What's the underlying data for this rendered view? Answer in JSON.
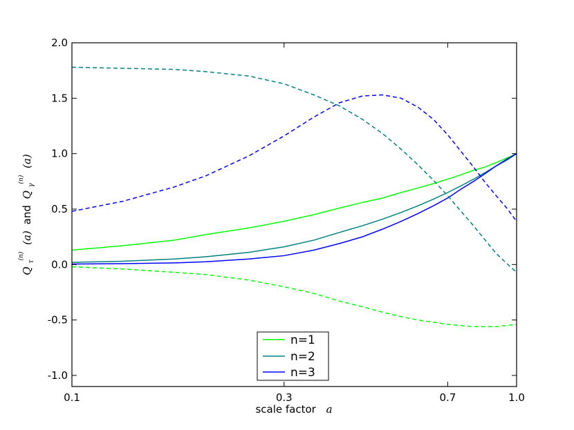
{
  "chart_data": {
    "type": "line",
    "xscale": "log",
    "xlim": [
      0.1,
      1.0
    ],
    "ylim": [
      -1.1,
      2.0
    ],
    "xticks": [
      "0.1",
      "0.3",
      "0.7",
      "1.0"
    ],
    "xtick_values": [
      0.1,
      0.3,
      0.7,
      1.0
    ],
    "yticks": [
      "2.0",
      "1.5",
      "1.0",
      "0.5",
      "0.0",
      "-0.5",
      "-1.0"
    ],
    "ytick_values": [
      2.0,
      1.5,
      1.0,
      0.5,
      0.0,
      -0.5,
      -1.0
    ],
    "xlabel": {
      "prefix": "scale factor",
      "var": "a"
    },
    "ylabel": {
      "Q1": "Q",
      "sub1": "τ",
      "sup1": "(n)",
      "arg1": "(a)",
      "joiner": "and",
      "Q2": "Q",
      "sub2": "γ",
      "sup2": "(n)",
      "arg2": "(a)"
    },
    "grid": false,
    "legend_position": "lower center",
    "legend": [
      {
        "label": "n=1",
        "color": "#00ff00"
      },
      {
        "label": "n=2",
        "color": "#008080"
      },
      {
        "label": "n=3",
        "color": "#0000ff"
      }
    ],
    "x": [
      0.1,
      0.13,
      0.17,
      0.2,
      0.25,
      0.3,
      0.35,
      0.4,
      0.45,
      0.5,
      0.55,
      0.6,
      0.65,
      0.7,
      0.75,
      0.8,
      0.85,
      0.9,
      0.95,
      1.0
    ],
    "series": [
      {
        "name": "n=1",
        "style": "solid",
        "color": "#00ff00",
        "values": [
          0.13,
          0.17,
          0.22,
          0.27,
          0.33,
          0.39,
          0.45,
          0.51,
          0.56,
          0.6,
          0.65,
          0.69,
          0.73,
          0.77,
          0.81,
          0.85,
          0.88,
          0.92,
          0.96,
          1.0
        ]
      },
      {
        "name": "n=2",
        "style": "solid",
        "color": "#008080",
        "values": [
          0.02,
          0.03,
          0.05,
          0.07,
          0.11,
          0.16,
          0.22,
          0.29,
          0.35,
          0.41,
          0.47,
          0.53,
          0.59,
          0.65,
          0.71,
          0.77,
          0.83,
          0.89,
          0.94,
          1.0
        ]
      },
      {
        "name": "",
        "style": "solid",
        "color": "#0000ff",
        "values": [
          0.005,
          0.008,
          0.015,
          0.025,
          0.05,
          0.08,
          0.13,
          0.19,
          0.25,
          0.32,
          0.39,
          0.46,
          0.53,
          0.6,
          0.68,
          0.75,
          0.82,
          0.89,
          0.95,
          1.0
        ]
      },
      {
        "name": "",
        "style": "dashed",
        "color": "#00ff00",
        "values": [
          -0.02,
          -0.04,
          -0.07,
          -0.09,
          -0.14,
          -0.2,
          -0.26,
          -0.33,
          -0.38,
          -0.43,
          -0.47,
          -0.5,
          -0.52,
          -0.54,
          -0.55,
          -0.56,
          -0.56,
          -0.56,
          -0.55,
          -0.54
        ]
      },
      {
        "name": "",
        "style": "dashed",
        "color": "#008080",
        "values": [
          1.78,
          1.77,
          1.76,
          1.74,
          1.7,
          1.63,
          1.53,
          1.43,
          1.31,
          1.18,
          1.04,
          0.9,
          0.76,
          0.62,
          0.48,
          0.35,
          0.22,
          0.1,
          0.01,
          -0.07
        ]
      },
      {
        "name": "",
        "style": "dashed",
        "color": "#0000ff",
        "values": [
          0.48,
          0.57,
          0.7,
          0.8,
          0.98,
          1.16,
          1.33,
          1.46,
          1.52,
          1.53,
          1.5,
          1.42,
          1.31,
          1.17,
          1.02,
          0.88,
          0.74,
          0.62,
          0.51,
          0.39
        ]
      }
    ]
  }
}
